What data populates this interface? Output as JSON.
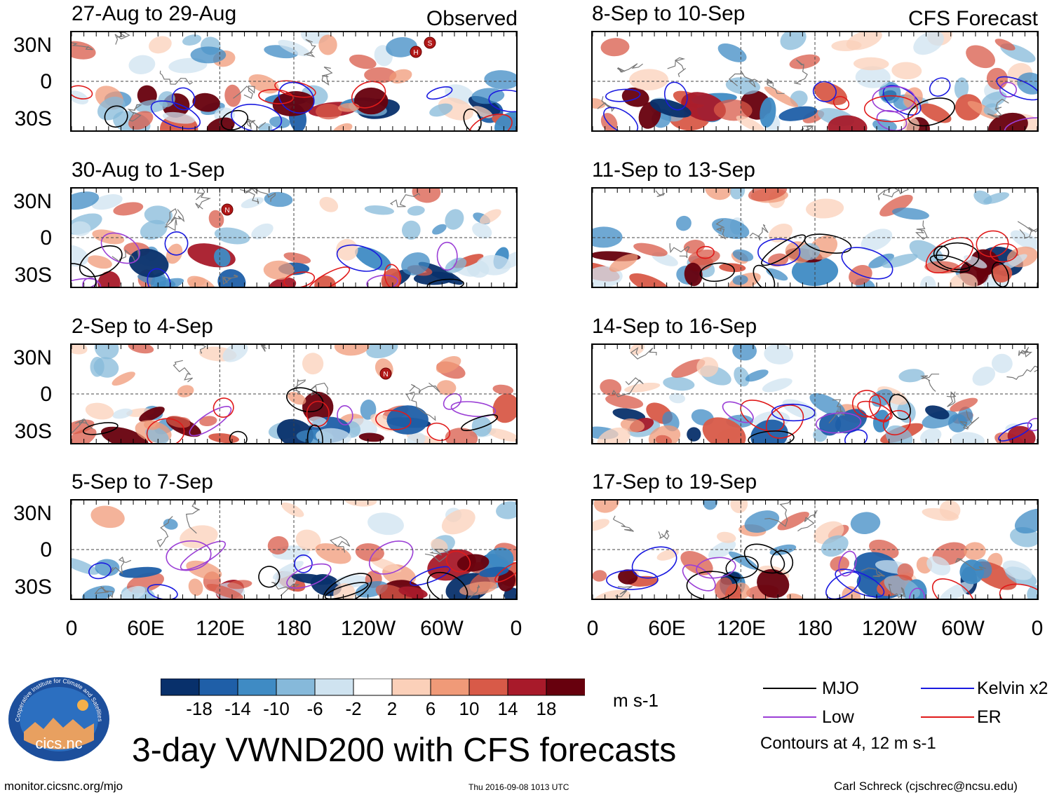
{
  "columns": {
    "left_label": "Observed",
    "right_label": "CFS Forecast"
  },
  "panels": {
    "left": [
      {
        "title": "27-Aug to 29-Aug"
      },
      {
        "title": "30-Aug to 1-Sep"
      },
      {
        "title": "2-Sep to 4-Sep"
      },
      {
        "title": "5-Sep to 7-Sep"
      }
    ],
    "right": [
      {
        "title": "8-Sep to 10-Sep"
      },
      {
        "title": "11-Sep to 13-Sep"
      },
      {
        "title": "14-Sep to 16-Sep"
      },
      {
        "title": "17-Sep to 19-Sep"
      }
    ]
  },
  "axes": {
    "lat_ticks": [
      "30N",
      "0",
      "30S"
    ],
    "lon_ticks": [
      "0",
      "60E",
      "120E",
      "180",
      "120W",
      "60W",
      "0"
    ]
  },
  "storm_markers": [
    {
      "panel": "left-1",
      "label": "H"
    },
    {
      "panel": "left-1",
      "label": "S"
    },
    {
      "panel": "left-2",
      "label": "N"
    },
    {
      "panel": "left-3",
      "label": "N"
    }
  ],
  "colorbar": {
    "labels": [
      "-18",
      "-14",
      "-10",
      "-6",
      "-2",
      "2",
      "6",
      "10",
      "14",
      "18"
    ],
    "units": "m s-1",
    "colors": [
      "#08306b",
      "#1f5fa8",
      "#3f8bc4",
      "#86b9da",
      "#cfe3f0",
      "#ffffff",
      "#fbd0b9",
      "#f09a78",
      "#d85a48",
      "#a81a2a",
      "#67000d"
    ]
  },
  "legend": {
    "items": [
      {
        "label": "MJO",
        "color": "#000000"
      },
      {
        "label": "Kelvin x2",
        "color": "#1a1ae0"
      },
      {
        "label": "Low",
        "color": "#9b3fd6"
      },
      {
        "label": "ER",
        "color": "#e01a1a"
      }
    ],
    "note": "Contours at 4, 12 m s-1"
  },
  "logo": {
    "text": "cics.nc",
    "ring_text": "Cooperative Institute for Climate and Satellites"
  },
  "main_title": "3-day VWND200 with CFS forecasts",
  "footer": {
    "left": "monitor.cicsnc.org/mjo",
    "center": "Thu 2016-09-08 1013 UTC",
    "right": "Carl Schreck (cjschrec@ncsu.edu)"
  }
}
